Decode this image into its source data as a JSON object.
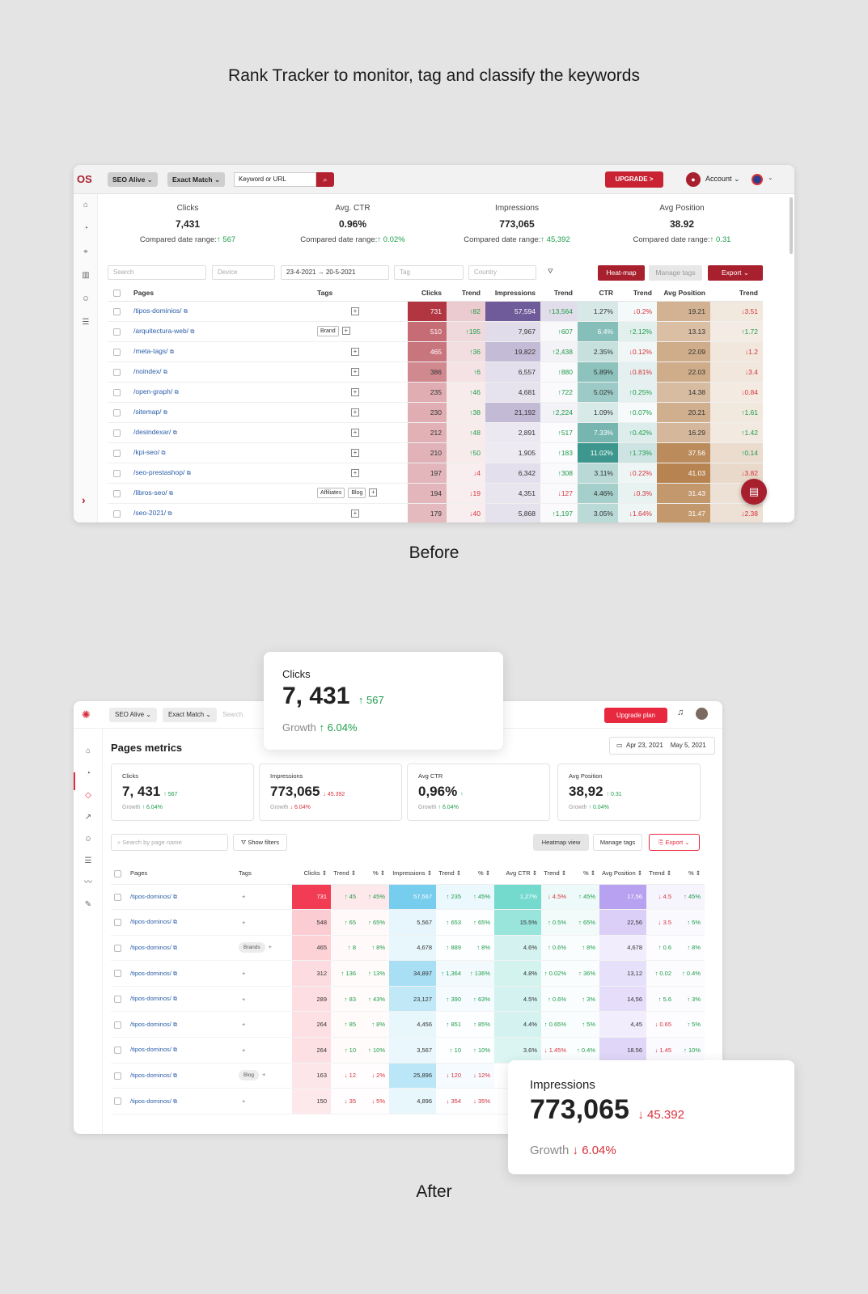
{
  "headline": "Rank Tracker to monitor, tag and classify the keywords",
  "before_label": "Before",
  "after_label": "After",
  "before": {
    "logo": "OS",
    "project": "SEO Alive ⌄",
    "match": "Exact Match ⌄",
    "search_placeholder": "Keyword or URL",
    "upgrade": "UPGRADE >",
    "account": "Account ⌄",
    "stats": [
      {
        "label": "Clicks",
        "value": "7,431",
        "compare": "Compared date range:",
        "delta": "↑ 567"
      },
      {
        "label": "Avg. CTR",
        "value": "0.96%",
        "compare": "Compared date range:",
        "delta": "↑ 0.02%"
      },
      {
        "label": "Impressions",
        "value": "773,065",
        "compare": "Compared date range:",
        "delta": "↑ 45,392"
      },
      {
        "label": "Avg Position",
        "value": "38.92",
        "compare": "Compared date range:",
        "delta": "↑ 0.31"
      }
    ],
    "filters": {
      "search": "Search",
      "device": "Device",
      "date_from": "23-4-2021",
      "date_to": "20-5-2021",
      "tag": "Tag",
      "country": "Country"
    },
    "buttons": {
      "heatmap": "Heat-map",
      "manage_tags": "Manage tags",
      "export": "Export ⌄"
    },
    "columns": [
      "Pages",
      "Tags",
      "Clicks",
      "Trend",
      "Impressions",
      "Trend",
      "CTR",
      "Trend",
      "Avg Position",
      "Trend"
    ],
    "rows": [
      {
        "page": "/tipos-dominios/",
        "tags": [],
        "clicks": "731",
        "ct": "↑82",
        "imp": "57,594",
        "it": "↑13,564",
        "ctr": "1.27%",
        "crt": "↓0.2%",
        "pos": "19.21",
        "pt": "↓3.51"
      },
      {
        "page": "/arquitectura-web/",
        "tags": [
          "Brand"
        ],
        "clicks": "510",
        "ct": "↑195",
        "imp": "7,967",
        "it": "↑607",
        "ctr": "6.4%",
        "crt": "↑2.12%",
        "pos": "13.13",
        "pt": "↑1.72"
      },
      {
        "page": "/meta-tags/",
        "tags": [],
        "clicks": "465",
        "ct": "↑36",
        "imp": "19,822",
        "it": "↑2,438",
        "ctr": "2.35%",
        "crt": "↓0.12%",
        "pos": "22.09",
        "pt": "↓1.2"
      },
      {
        "page": "/noindex/",
        "tags": [],
        "clicks": "386",
        "ct": "↑6",
        "imp": "6,557",
        "it": "↑880",
        "ctr": "5.89%",
        "crt": "↓0.81%",
        "pos": "22.03",
        "pt": "↓3.4"
      },
      {
        "page": "/open-graph/",
        "tags": [],
        "clicks": "235",
        "ct": "↑46",
        "imp": "4,681",
        "it": "↑722",
        "ctr": "5.02%",
        "crt": "↑0.25%",
        "pos": "14.38",
        "pt": "↓0.84"
      },
      {
        "page": "/sitemap/",
        "tags": [],
        "clicks": "230",
        "ct": "↑38",
        "imp": "21,192",
        "it": "↑2,224",
        "ctr": "1.09%",
        "crt": "↑0.07%",
        "pos": "20.21",
        "pt": "↑1.61"
      },
      {
        "page": "/desindexar/",
        "tags": [],
        "clicks": "212",
        "ct": "↑48",
        "imp": "2,891",
        "it": "↑517",
        "ctr": "7.33%",
        "crt": "↑0.42%",
        "pos": "16.29",
        "pt": "↑1.42"
      },
      {
        "page": "/kpi-seo/",
        "tags": [],
        "clicks": "210",
        "ct": "↑50",
        "imp": "1,905",
        "it": "↑183",
        "ctr": "11.02%",
        "crt": "↑1.73%",
        "pos": "37.56",
        "pt": "↑0.14"
      },
      {
        "page": "/seo-prestashop/",
        "tags": [],
        "clicks": "197",
        "ct": "↓4",
        "imp": "6,342",
        "it": "↑308",
        "ctr": "3.11%",
        "crt": "↓0.22%",
        "pos": "41.03",
        "pt": "↓3.82"
      },
      {
        "page": "/libros-seo/",
        "tags": [
          "Affiliates",
          "Blog"
        ],
        "clicks": "194",
        "ct": "↓19",
        "imp": "4,351",
        "it": "↓127",
        "ctr": "4.46%",
        "crt": "↓0.3%",
        "pos": "31.43",
        "pt": "↑0.3"
      },
      {
        "page": "/seo-2021/",
        "tags": [],
        "clicks": "179",
        "ct": "↓40",
        "imp": "5,868",
        "it": "↑1,197",
        "ctr": "3.05%",
        "crt": "↓1.64%",
        "pos": "31.47",
        "pt": "↓2.38"
      }
    ]
  },
  "after": {
    "project": "SEO Alive ⌄",
    "match": "Exact Match ⌄",
    "search_placeholder": "Search",
    "upgrade": "Upgrade plan",
    "title": "Pages metrics",
    "date_from": "Apr 23, 2021",
    "date_to": "May 5, 2021",
    "cards": [
      {
        "label": "Clicks",
        "value": "7, 431",
        "delta": "↑ 567",
        "dir": "up",
        "growth": "Growth",
        "growth_val": "↑ 6.04%",
        "gdir": "up"
      },
      {
        "label": "Impressions",
        "value": "773,065",
        "delta": "↓ 45.392",
        "dir": "down",
        "growth": "Growth",
        "growth_val": "↓ 6.04%",
        "gdir": "down"
      },
      {
        "label": "Avg CTR",
        "value": "0,96%",
        "delta": "↑",
        "dir": "up",
        "growth": "Growth",
        "growth_val": "↑ 6.04%",
        "gdir": "up"
      },
      {
        "label": "Avg Position",
        "value": "38,92",
        "delta": "↑ 0.31",
        "dir": "up",
        "growth": "Growth",
        "growth_val": "↑ 0.04%",
        "gdir": "up"
      }
    ],
    "search_page": "Search by page name",
    "show_filters": "Show filters",
    "heatmap": "Heatmap view",
    "manage_tags": "Manage tags",
    "export": "Export ⌄",
    "columns": [
      "Pages",
      "Tags",
      "Clicks",
      "Trend",
      "%",
      "Impressions",
      "Trend",
      "%",
      "Avg CTR",
      "Trend",
      "%",
      "Avg Position",
      "Trend",
      "%"
    ],
    "rows": [
      {
        "page": "/tipos-dominos/",
        "tag": "",
        "c": "731",
        "ct": "↑ 45",
        "cp": "↑ 45%",
        "i": "57,567",
        "it": "↑ 235",
        "ip": "↑ 45%",
        "r": "1,27%",
        "rt": "↓ 4.5%",
        "rp": "↑ 45%",
        "p": "17,56",
        "pt": "↓ 4.5",
        "pp": "↑ 45%"
      },
      {
        "page": "/tipos-dominos/",
        "tag": "",
        "c": "548",
        "ct": "↑ 65",
        "cp": "↑ 65%",
        "i": "5,567",
        "it": "↑ 653",
        "ip": "↑ 65%",
        "r": "15.5%",
        "rt": "↑ 0.5%",
        "rp": "↑ 65%",
        "p": "22,56",
        "pt": "↓ 3.5",
        "pp": "↑ 5%"
      },
      {
        "page": "/tipos-dominos/",
        "tag": "Brands",
        "c": "465",
        "ct": "↑ 8",
        "cp": "↑ 8%",
        "i": "4,678",
        "it": "↑ 889",
        "ip": "↑ 8%",
        "r": "4.6%",
        "rt": "↑ 0.6%",
        "rp": "↑ 8%",
        "p": "4,678",
        "pt": "↑ 0.6",
        "pp": "↑ 8%"
      },
      {
        "page": "/tipos-dominos/",
        "tag": "",
        "c": "312",
        "ct": "↑ 136",
        "cp": "↑ 13%",
        "i": "34,897",
        "it": "↑ 1,364",
        "ip": "↑ 136%",
        "r": "4.8%",
        "rt": "↑ 0.02%",
        "rp": "↑ 36%",
        "p": "13,12",
        "pt": "↑ 0.02",
        "pp": "↑ 0.4%"
      },
      {
        "page": "/tipos-dominos/",
        "tag": "",
        "c": "289",
        "ct": "↑ 83",
        "cp": "↑ 43%",
        "i": "23,127",
        "it": "↑ 390",
        "ip": "↑ 63%",
        "r": "4.5%",
        "rt": "↑ 0.6%",
        "rp": "↑ 3%",
        "p": "14,56",
        "pt": "↑ 5.6",
        "pp": "↑ 3%"
      },
      {
        "page": "/tipos-dominos/",
        "tag": "",
        "c": "264",
        "ct": "↑ 85",
        "cp": "↑ 8%",
        "i": "4,456",
        "it": "↑ 851",
        "ip": "↑ 85%",
        "r": "4.4%",
        "rt": "↑ 0.65%",
        "rp": "↑ 5%",
        "p": "4,45",
        "pt": "↓ 0.65",
        "pp": "↑ 5%"
      },
      {
        "page": "/tipos-dominos/",
        "tag": "",
        "c": "264",
        "ct": "↑ 10",
        "cp": "↑ 10%",
        "i": "3,567",
        "it": "↑ 10",
        "ip": "↑ 10%",
        "r": "3.6%",
        "rt": "↓ 1.45%",
        "rp": "↑ 0.4%",
        "p": "18.56",
        "pt": "↓ 1.45",
        "pp": "↑ 10%"
      },
      {
        "page": "/tipos-dominos/",
        "tag": "Blog",
        "c": "163",
        "ct": "↓ 12",
        "cp": "↓ 2%",
        "i": "25,896",
        "it": "↓ 120",
        "ip": "↓ 12%",
        "r": "",
        "rt": "",
        "rp": "",
        "p": "",
        "pt": "",
        "pp": ""
      },
      {
        "page": "/tipos-dominos/",
        "tag": "",
        "c": "150",
        "ct": "↓ 35",
        "cp": "↓ 5%",
        "i": "4,896",
        "it": "↓ 354",
        "ip": "↓ 35%",
        "r": "",
        "rt": "",
        "rp": "",
        "p": "",
        "pt": "",
        "pp": ""
      }
    ]
  },
  "float_clicks": {
    "label": "Clicks",
    "value": "7, 431",
    "delta": "↑ 567",
    "growth": "Growth",
    "growth_val": "↑ 6.04%"
  },
  "float_impressions": {
    "label": "Impressions",
    "value": "773,065",
    "delta": "↓ 45.392",
    "growth": "Growth",
    "growth_val": "↓ 6.04%"
  }
}
